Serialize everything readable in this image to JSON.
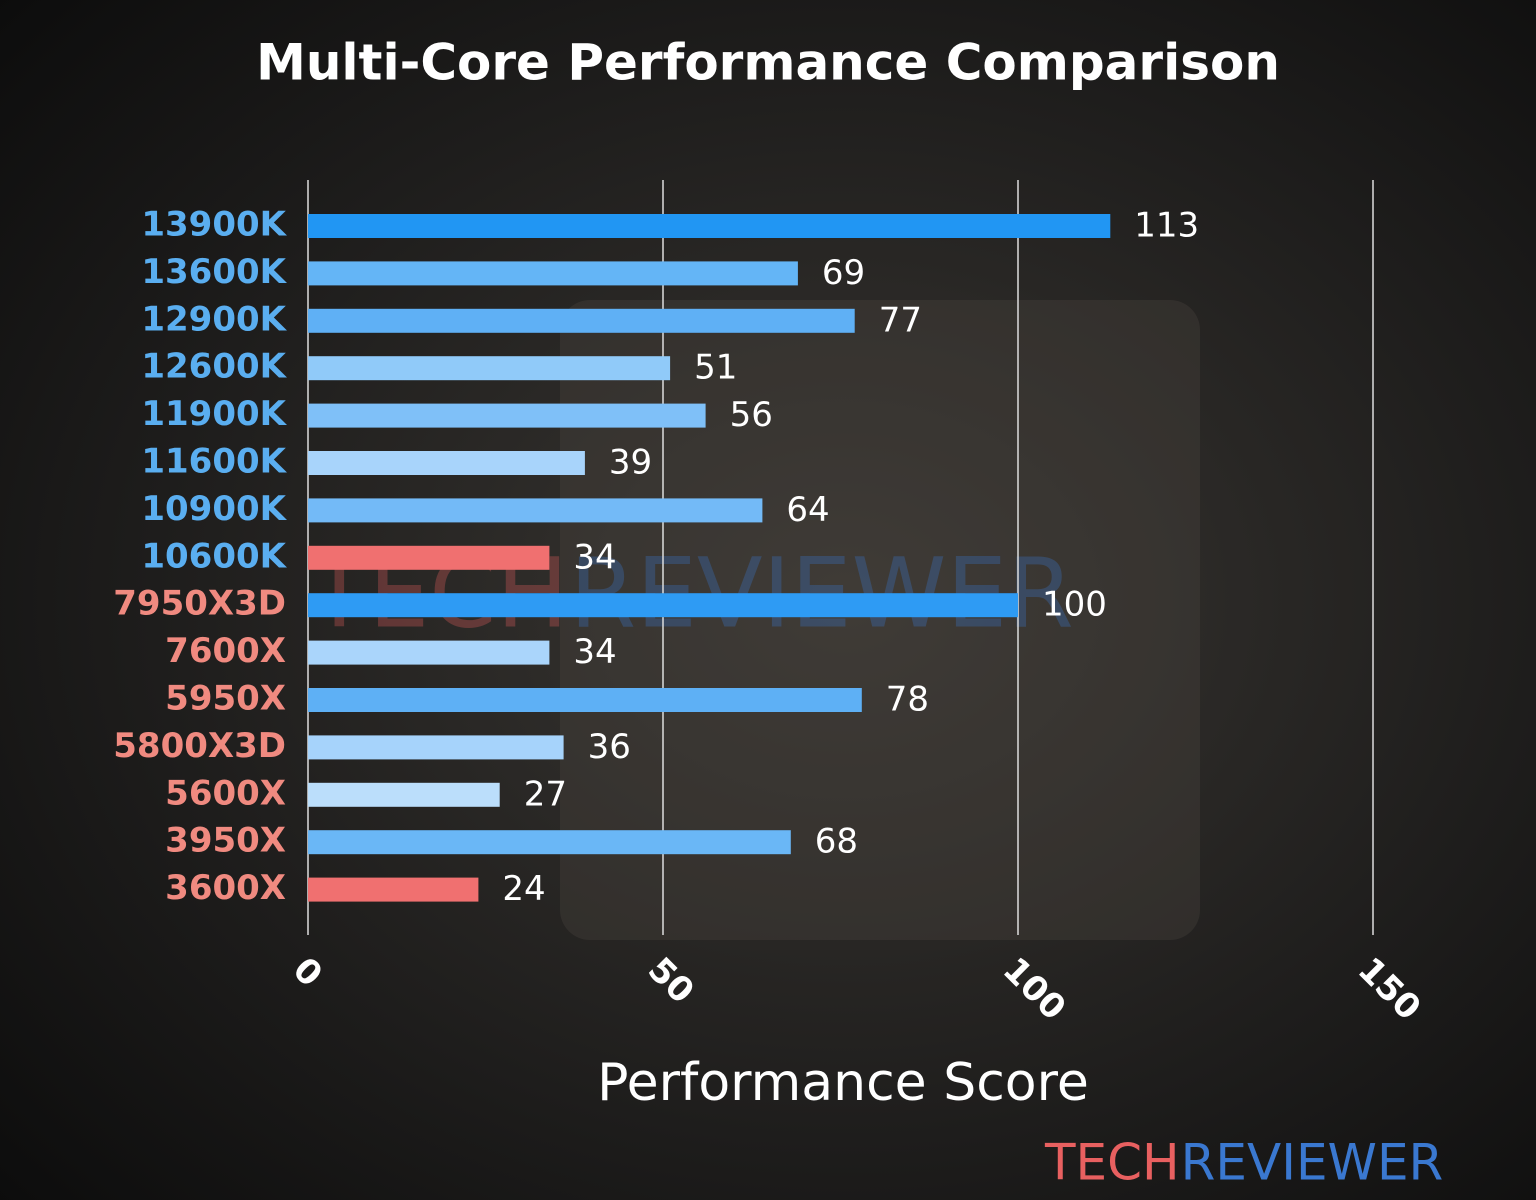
{
  "chart_data": {
    "type": "barh",
    "title": "Multi-Core Performance Comparison",
    "x_label": "Performance Score",
    "categories": [
      "13900K",
      "13600K",
      "12900K",
      "12600K",
      "11900K",
      "11600K",
      "10900K",
      "10600K",
      "7950X3D",
      "7600X",
      "5950X",
      "5800X3D",
      "5600X",
      "3950X",
      "3600X"
    ],
    "values": [
      113,
      69,
      77,
      51,
      56,
      39,
      64,
      34,
      100,
      34,
      78,
      36,
      27,
      68,
      24
    ],
    "colors": [
      "#2196f3",
      "#64b5f6",
      "#5fb0f5",
      "#90caf9",
      "#7fc0f8",
      "#a8d4fb",
      "#73baf7",
      "#f07070",
      "#2e9bf4",
      "#aad5fb",
      "#5eb0f5",
      "#a6d3fb",
      "#bbdefb",
      "#6ab7f6",
      "#f07070"
    ],
    "category_colors": [
      "#5aaef0",
      "#5aaef0",
      "#5aaef0",
      "#5aaef0",
      "#5aaef0",
      "#5aaef0",
      "#5aaef0",
      "#5aaef0",
      "#f08a80",
      "#f08a80",
      "#f08a80",
      "#f08a80",
      "#f08a80",
      "#f08a80",
      "#f08a80"
    ],
    "xlim": [
      0,
      150
    ],
    "xticks": [
      0,
      50,
      100,
      150
    ],
    "grid": true,
    "watermark_parts": [
      "TECH",
      "REVIEWER"
    ],
    "watermark_colors": [
      "#e86060",
      "#3a78d0"
    ]
  }
}
